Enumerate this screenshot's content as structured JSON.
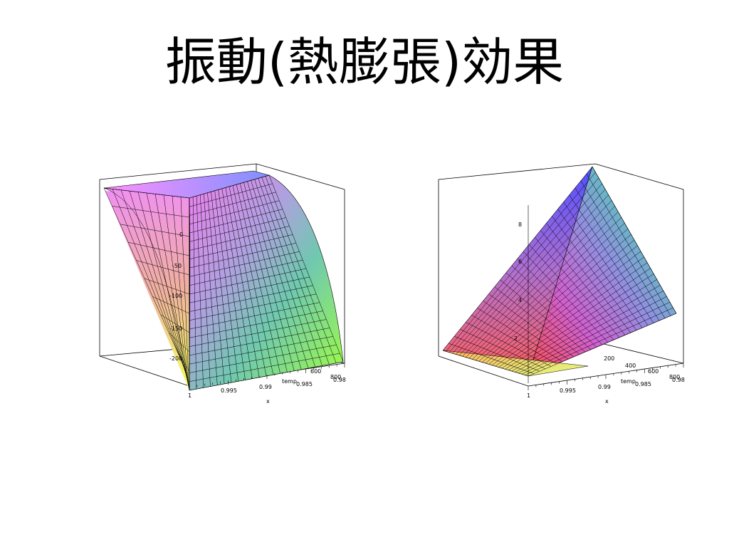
{
  "title": "振動(熱膨張)効果",
  "plots": [
    {
      "name": "left-surface-plot",
      "x_axis": {
        "label": "x",
        "ticks": [
          "1",
          "0.995",
          "0.99",
          "0.985",
          "0.98"
        ]
      },
      "temp_axis": {
        "label": "temp",
        "ticks": [
          "600",
          "800"
        ]
      },
      "z_axis": {
        "ticks": [
          "0",
          "-50",
          "-100",
          "-150",
          "-200"
        ]
      }
    },
    {
      "name": "right-surface-plot",
      "x_axis": {
        "label": "x",
        "ticks": [
          "1",
          "0.995",
          "0.99",
          "0.985",
          "0.98"
        ]
      },
      "temp_axis": {
        "label": "temp",
        "ticks": [
          "200",
          "400",
          "600",
          "800"
        ]
      },
      "z_axis": {
        "ticks": [
          "2",
          "4",
          "6",
          "8"
        ]
      }
    }
  ]
}
